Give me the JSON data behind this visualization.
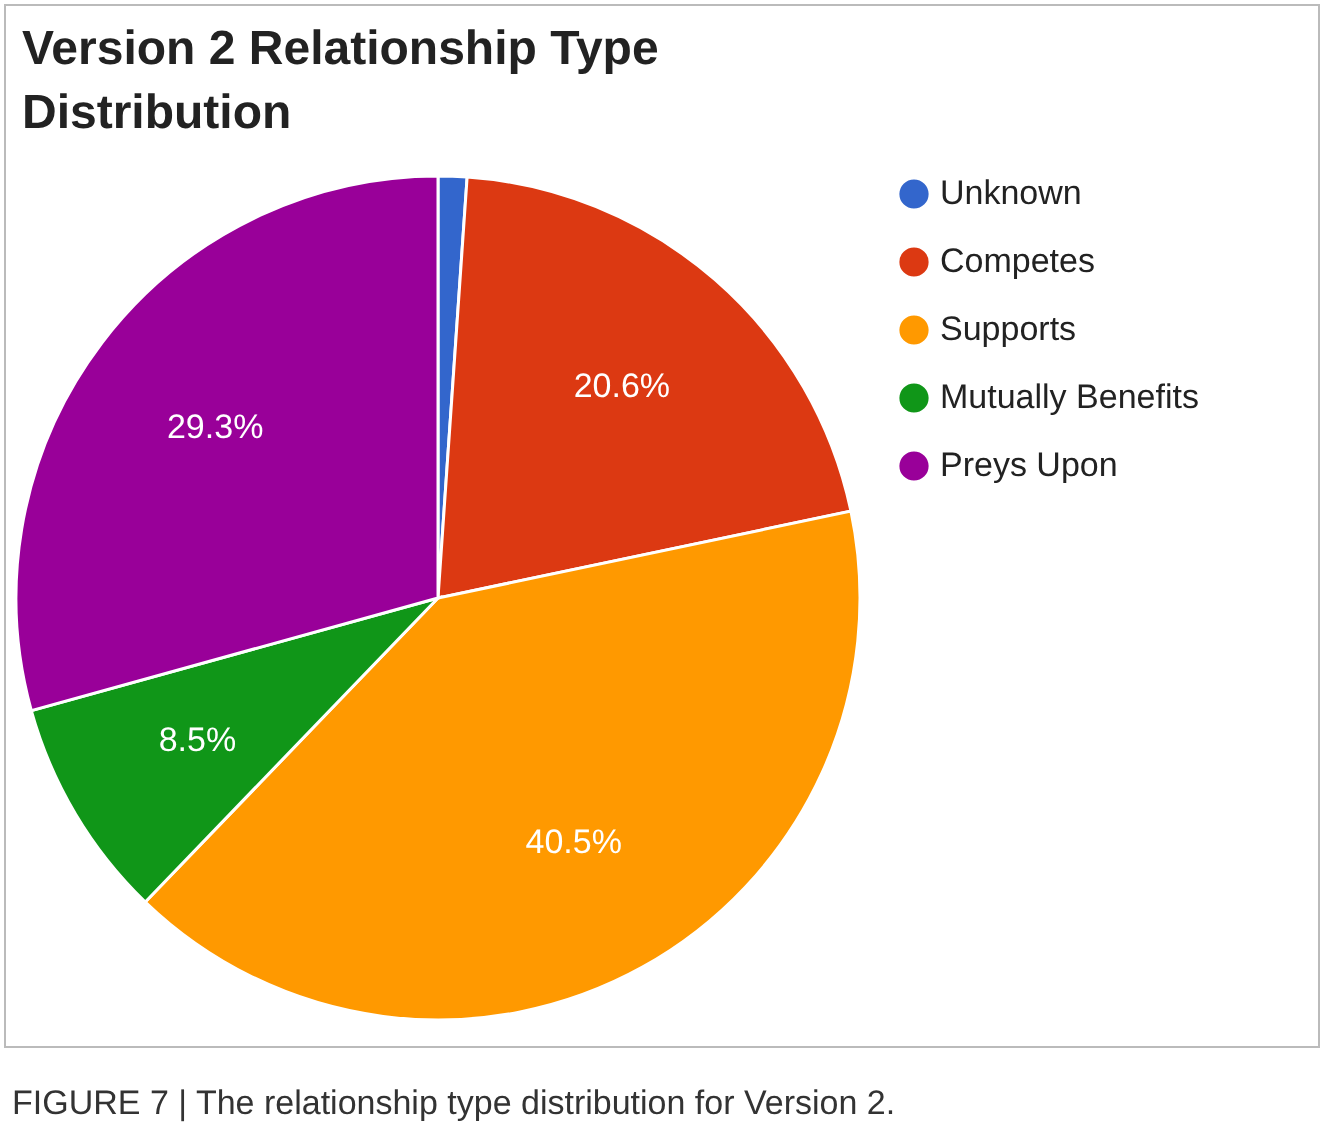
{
  "chart_data": {
    "type": "pie",
    "title": "Version 2 Relationship Type Distribution",
    "categories": [
      "Unknown",
      "Competes",
      "Supports",
      "Mutually Benefits",
      "Preys Upon"
    ],
    "values": [
      1.1,
      20.6,
      40.5,
      8.5,
      29.3
    ],
    "colors": [
      "#3366cc",
      "#dc3912",
      "#ff9900",
      "#109618",
      "#990099"
    ],
    "value_labels": [
      null,
      "20.6%",
      "40.5%",
      "8.5%",
      "29.3%"
    ],
    "legend": "top right",
    "annotations": [
      "FIGURE 7 | The relationship type distribution for Version 2."
    ]
  }
}
